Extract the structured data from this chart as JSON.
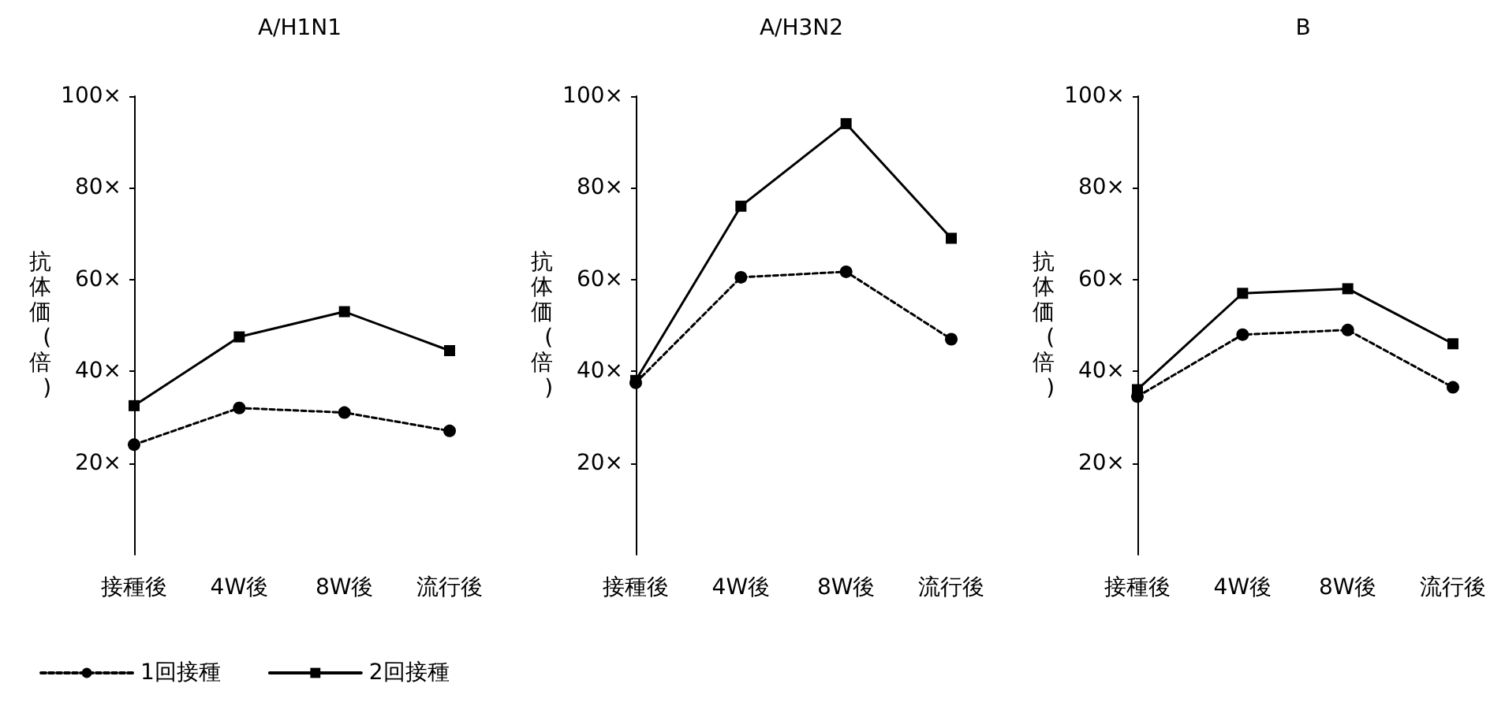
{
  "chart_data": [
    {
      "type": "line",
      "title": "A/H1N1",
      "ylabel": "抗体価(倍)",
      "categories": [
        "接種後",
        "4W後",
        "8W後",
        "流行後"
      ],
      "ylim": [
        0,
        100
      ],
      "yticks": [
        {
          "value": 20,
          "label": "20×"
        },
        {
          "value": 40,
          "label": "40×"
        },
        {
          "value": 60,
          "label": "60×"
        },
        {
          "value": 80,
          "label": "80×"
        },
        {
          "value": 100,
          "label": "100×"
        }
      ],
      "grid": false,
      "legend": "bottom left",
      "series": [
        {
          "name": "1回接種",
          "color": "#000000",
          "marker": "circle",
          "line_style": "dashed",
          "values": [
            24,
            32,
            31,
            27
          ]
        },
        {
          "name": "2回接種",
          "color": "#000000",
          "marker": "square",
          "line_style": "solid",
          "values": [
            32.5,
            47.5,
            53,
            44.5
          ]
        }
      ]
    },
    {
      "type": "line",
      "title": "A/H3N2",
      "ylabel": "抗体価(倍)",
      "categories": [
        "接種後",
        "4W後",
        "8W後",
        "流行後"
      ],
      "ylim": [
        0,
        100
      ],
      "yticks": [
        {
          "value": 20,
          "label": "20×"
        },
        {
          "value": 40,
          "label": "40×"
        },
        {
          "value": 60,
          "label": "60×"
        },
        {
          "value": 80,
          "label": "80×"
        },
        {
          "value": 100,
          "label": "100×"
        }
      ],
      "grid": false,
      "series": [
        {
          "color": "#000000",
          "marker": "circle",
          "line_style": "dashed",
          "values": [
            37.5,
            60.5,
            61.7,
            47
          ]
        },
        {
          "color": "#000000",
          "marker": "square",
          "line_style": "solid",
          "values": [
            38,
            76,
            94,
            69
          ]
        }
      ]
    },
    {
      "type": "line",
      "title": "B",
      "ylabel": "抗体価(倍)",
      "categories": [
        "接種後",
        "4W後",
        "8W後",
        "流行後"
      ],
      "ylim": [
        0,
        100
      ],
      "yticks": [
        {
          "value": 20,
          "label": "20×"
        },
        {
          "value": 40,
          "label": "40×"
        },
        {
          "value": 60,
          "label": "60×"
        },
        {
          "value": 80,
          "label": "80×"
        },
        {
          "value": 100,
          "label": "100×"
        }
      ],
      "grid": false,
      "series": [
        {
          "color": "#000000",
          "marker": "circle",
          "line_style": "dashed",
          "values": [
            34.5,
            48,
            49,
            36.5
          ]
        },
        {
          "color": "#000000",
          "marker": "square",
          "line_style": "solid",
          "values": [
            36,
            57,
            58,
            46
          ]
        }
      ]
    }
  ]
}
